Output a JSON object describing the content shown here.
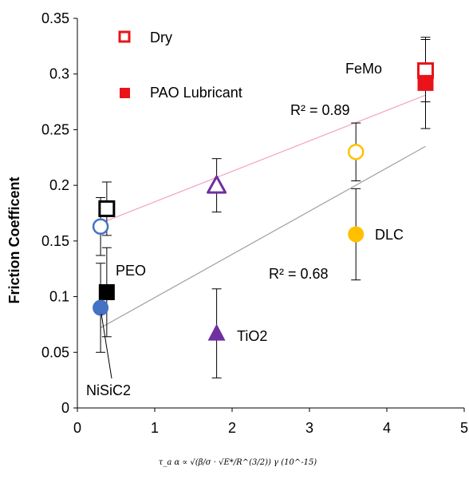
{
  "chart_data": {
    "type": "scatter",
    "title": "",
    "xlabel": "τ_a α ∝ √(β/σ · √E*/R^(3/2)) γ (10^-15)",
    "ylabel": "Friction Coefficent",
    "xlim": [
      0,
      5
    ],
    "ylim": [
      0,
      0.35
    ],
    "xticks": [
      "0",
      "1",
      "2",
      "3",
      "4",
      "5"
    ],
    "yticks": [
      "0",
      "0.05",
      "0.1",
      "0.15",
      "0.2",
      "0.25",
      "0.3",
      "0.35"
    ],
    "grid": false,
    "legend": {
      "placement": "top-left",
      "entries": [
        {
          "label": "Dry",
          "marker": "open-square",
          "color": "#e8141a"
        },
        {
          "label": "PAO Lubricant",
          "marker": "filled-square",
          "color": "#e8141a"
        }
      ]
    },
    "series": [
      {
        "label": "Dry",
        "condition": "dry",
        "points": [
          {
            "material": "PEO",
            "x": 0.38,
            "y": 0.179,
            "err": 0.024,
            "marker": "open-square",
            "color": "#000000"
          },
          {
            "material": "NiSiC2",
            "x": 0.3,
            "y": 0.163,
            "err": 0.026,
            "marker": "open-circle",
            "color": "#4472c4"
          },
          {
            "material": "TiO2",
            "x": 1.8,
            "y": 0.2,
            "err": 0.024,
            "marker": "open-triangle",
            "color": "#7030a0"
          },
          {
            "material": "DLC",
            "x": 3.6,
            "y": 0.23,
            "err": 0.026,
            "marker": "open-circle",
            "color": "#ffc000"
          },
          {
            "material": "FeMo",
            "x": 4.5,
            "y": 0.303,
            "err": 0.028,
            "marker": "open-square",
            "color": "#e8141a"
          }
        ]
      },
      {
        "label": "PAO Lubricant",
        "condition": "pao",
        "points": [
          {
            "material": "PEO",
            "x": 0.38,
            "y": 0.104,
            "err": 0.04,
            "marker": "filled-square",
            "color": "#000000"
          },
          {
            "material": "NiSiC2",
            "x": 0.3,
            "y": 0.09,
            "err": 0.04,
            "marker": "filled-circle",
            "color": "#4472c4"
          },
          {
            "material": "TiO2",
            "x": 1.8,
            "y": 0.067,
            "err": 0.04,
            "marker": "filled-triangle",
            "color": "#7030a0"
          },
          {
            "material": "DLC",
            "x": 3.6,
            "y": 0.156,
            "err": 0.041,
            "marker": "filled-circle",
            "color": "#ffc000"
          },
          {
            "material": "FeMo",
            "x": 4.5,
            "y": 0.292,
            "err": 0.041,
            "marker": "filled-square",
            "color": "#e8141a"
          }
        ]
      }
    ],
    "trendlines": [
      {
        "series": "dry",
        "x": [
          0.3,
          4.5
        ],
        "y": [
          0.166,
          0.281
        ],
        "color": "#f4a6c8",
        "r2_label": "R² = 0.89"
      },
      {
        "series": "pao",
        "x": [
          0.3,
          4.5
        ],
        "y": [
          0.072,
          0.235
        ],
        "color": "#a6a6a6",
        "r2_label": "R² = 0.68"
      }
    ],
    "annotations": [
      "FeMo",
      "PEO",
      "DLC",
      "TiO2",
      "NiSiC2"
    ]
  }
}
